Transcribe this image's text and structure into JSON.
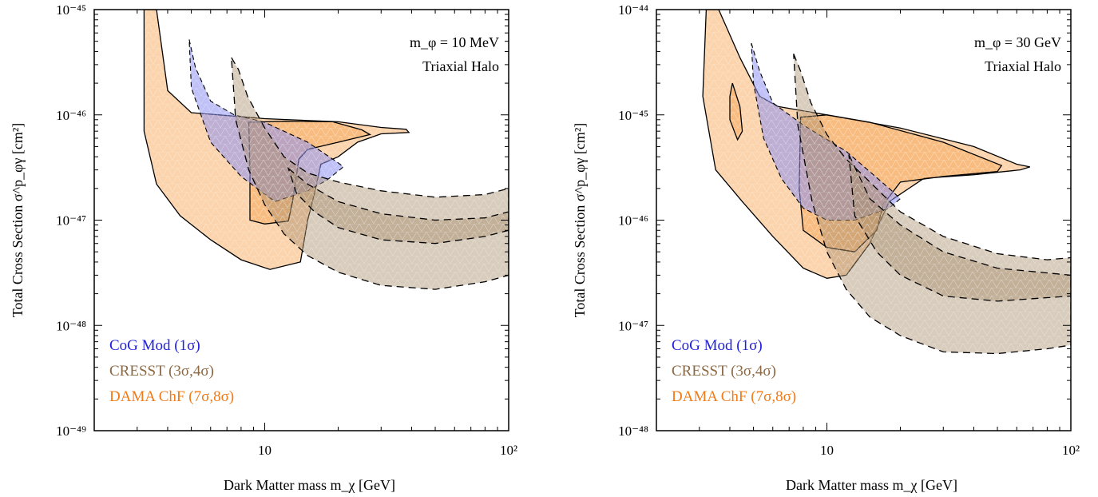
{
  "chart_data": [
    {
      "type": "area",
      "panel": "left",
      "annotation_lines": [
        "m_φ = 10 MeV",
        "Triaxial Halo"
      ],
      "xlabel": "Dark Matter mass   m_χ  [GeV]",
      "ylabel": "Total Cross Section  σ^p_φγ [cm²]",
      "xscale": "log",
      "yscale": "log",
      "xlim": [
        2,
        100
      ],
      "ylim": [
        1e-49,
        1e-45
      ],
      "xticklabels": [
        "10",
        "10²"
      ],
      "yticklabels": [
        "10⁻⁴⁵",
        "10⁻⁴⁶",
        "10⁻⁴⁷",
        "10⁻⁴⁸",
        "10⁻⁴⁹"
      ],
      "legend": [
        {
          "label": "CoG Mod  (1σ)",
          "color": "#2222dd"
        },
        {
          "label": "CRESST  (3σ,4σ)",
          "color": "#8b6a45"
        },
        {
          "label": "DAMA ChF (7σ,8σ)",
          "color": "#f07b17"
        }
      ],
      "legend_position": "bottom-left",
      "series": [
        {
          "name": "DAMA ChF (7σ,8σ)",
          "contour": "8σ",
          "points": [
            [
              3.2,
              1e-45
            ],
            [
              3.6,
              1e-45
            ],
            [
              4.0,
              1.7e-46
            ],
            [
              5.0,
              1.05e-46
            ],
            [
              6.5,
              1e-46
            ],
            [
              10,
              9.2e-47
            ],
            [
              20,
              8.6e-47
            ],
            [
              30,
              7.6e-47
            ],
            [
              38,
              7.3e-47
            ],
            [
              39,
              6.8e-47
            ],
            [
              30,
              6.6e-47
            ],
            [
              24,
              5.5e-47
            ],
            [
              20,
              4e-47
            ],
            [
              17,
              3.4e-47
            ],
            [
              16,
              1.8e-47
            ],
            [
              15,
              1e-47
            ],
            [
              14,
              4e-48
            ],
            [
              10.5,
              3.4e-48
            ],
            [
              8,
              4.2e-48
            ],
            [
              6,
              6.5e-48
            ],
            [
              4.5,
              1.1e-47
            ],
            [
              3.6,
              2.2e-47
            ],
            [
              3.2,
              7e-47
            ],
            [
              3.2,
              1e-45
            ]
          ]
        },
        {
          "name": "DAMA ChF (7σ,8σ)",
          "contour": "7σ",
          "points": [
            [
              8.6,
              8.5e-47
            ],
            [
              12,
              8.7e-47
            ],
            [
              19,
              8.6e-47
            ],
            [
              25,
              7.2e-47
            ],
            [
              27,
              6.5e-47
            ],
            [
              20,
              5.5e-47
            ],
            [
              15,
              4.7e-47
            ],
            [
              13.8,
              3.8e-47
            ],
            [
              13,
              1.5e-47
            ],
            [
              12.5,
              9.8e-48
            ],
            [
              10,
              9.2e-48
            ],
            [
              8.7,
              1e-47
            ],
            [
              8.7,
              3e-47
            ],
            [
              8.6,
              8.5e-47
            ]
          ]
        },
        {
          "name": "CoG Mod (1σ)",
          "contour": "1σ",
          "points": [
            [
              4.9,
              5.2e-46
            ],
            [
              5.2,
              2.8e-46
            ],
            [
              6.0,
              1.35e-46
            ],
            [
              7.5,
              1e-46
            ],
            [
              10,
              8.5e-47
            ],
            [
              15,
              5.5e-47
            ],
            [
              20,
              3.5e-47
            ],
            [
              21,
              3.2e-47
            ],
            [
              18,
              2.4e-47
            ],
            [
              15,
              1.9e-47
            ],
            [
              11,
              1.5e-47
            ],
            [
              8,
              2.6e-47
            ],
            [
              6,
              5.5e-47
            ],
            [
              5,
              1.8e-46
            ],
            [
              4.9,
              5.2e-46
            ]
          ]
        },
        {
          "name": "CRESST (3σ,4σ)",
          "contour": "4σ",
          "points": [
            [
              7.3,
              3.5e-46
            ],
            [
              7.8,
              2.7e-46
            ],
            [
              8.5,
              1.5e-46
            ],
            [
              10,
              7.5e-47
            ],
            [
              12,
              4e-47
            ],
            [
              15,
              2.8e-47
            ],
            [
              20,
              2.3e-47
            ],
            [
              30,
              1.9e-47
            ],
            [
              50,
              1.65e-47
            ],
            [
              80,
              1.75e-47
            ],
            [
              100,
              2e-47
            ],
            [
              100,
              3e-48
            ],
            [
              80,
              2.6e-48
            ],
            [
              50,
              2.2e-48
            ],
            [
              30,
              2.4e-48
            ],
            [
              20,
              3.2e-48
            ],
            [
              15,
              4.6e-48
            ],
            [
              12,
              7.4e-48
            ],
            [
              10,
              1.4e-47
            ],
            [
              8.6,
              3e-47
            ],
            [
              7.6,
              9e-47
            ],
            [
              7.3,
              3.5e-46
            ]
          ]
        },
        {
          "name": "CRESST (3σ,4σ)",
          "contour": "3σ",
          "points": [
            [
              12.5,
              3.1e-47
            ],
            [
              15,
              2.2e-47
            ],
            [
              20,
              1.5e-47
            ],
            [
              30,
              1.15e-47
            ],
            [
              50,
              1e-47
            ],
            [
              80,
              1.05e-47
            ],
            [
              100,
              1.2e-47
            ],
            [
              100,
              8e-48
            ],
            [
              80,
              7e-48
            ],
            [
              50,
              6e-48
            ],
            [
              30,
              6.5e-48
            ],
            [
              20,
              8.5e-48
            ],
            [
              16,
              1.2e-47
            ],
            [
              13.5,
              1.8e-47
            ],
            [
              12.5,
              3.1e-47
            ]
          ]
        }
      ]
    },
    {
      "type": "area",
      "panel": "right",
      "annotation_lines": [
        "m_φ = 30 GeV",
        "Triaxial Halo"
      ],
      "xlabel": "Dark Matter mass   m_χ  [GeV]",
      "ylabel": "Total Cross Section  σ^p_φγ [cm²]",
      "xscale": "log",
      "yscale": "log",
      "xlim": [
        2,
        100
      ],
      "ylim": [
        1e-48,
        1e-44
      ],
      "xticklabels": [
        "10",
        "10²"
      ],
      "yticklabels": [
        "10⁻⁴⁴",
        "10⁻⁴⁵",
        "10⁻⁴⁶",
        "10⁻⁴⁷",
        "10⁻⁴⁸"
      ],
      "legend": [
        {
          "label": "CoG Mod  (1σ)",
          "color": "#2222dd"
        },
        {
          "label": "CRESST  (3σ,4σ)",
          "color": "#8b6a45"
        },
        {
          "label": "DAMA ChF (7σ,8σ)",
          "color": "#f07b17"
        }
      ],
      "legend_position": "bottom-left",
      "series": [
        {
          "name": "DAMA ChF (7σ,8σ)",
          "contour": "8σ",
          "points": [
            [
              3.2,
              1e-44
            ],
            [
              3.6,
              1e-44
            ],
            [
              4.4,
              3.5e-45
            ],
            [
              5.3,
              1.5e-45
            ],
            [
              6.3,
              1.2e-45
            ],
            [
              10,
              1e-45
            ],
            [
              20,
              7.5e-46
            ],
            [
              40,
              5e-46
            ],
            [
              60,
              3.4e-46
            ],
            [
              68,
              3.2e-46
            ],
            [
              62,
              3e-46
            ],
            [
              40,
              2.7e-46
            ],
            [
              25,
              2.5e-46
            ],
            [
              18,
              1.5e-46
            ],
            [
              15,
              6e-47
            ],
            [
              12,
              3e-47
            ],
            [
              10,
              2.8e-47
            ],
            [
              8,
              3.5e-47
            ],
            [
              6,
              7e-47
            ],
            [
              4.5,
              1.5e-46
            ],
            [
              3.5,
              3e-46
            ],
            [
              3.1,
              1.5e-45
            ],
            [
              3.2,
              1e-44
            ]
          ]
        },
        {
          "name": "DAMA ChF (7σ,8σ)",
          "contour": "7σ",
          "points": [
            [
              7.8,
              9.5e-46
            ],
            [
              10,
              1e-45
            ],
            [
              15,
              8.5e-46
            ],
            [
              30,
              5.5e-46
            ],
            [
              52,
              3.3e-46
            ],
            [
              50,
              2.9e-46
            ],
            [
              30,
              2.6e-46
            ],
            [
              20,
              2.3e-46
            ],
            [
              17,
              1.4e-46
            ],
            [
              16,
              8e-47
            ],
            [
              13,
              5e-47
            ],
            [
              10,
              5.5e-47
            ],
            [
              8,
              8e-47
            ],
            [
              7.7,
              2e-46
            ],
            [
              7.8,
              9.5e-46
            ]
          ]
        },
        {
          "name": "DAMA ChF (7σ,8σ)",
          "contour": "7σ-island",
          "points": [
            [
              4.1,
              2e-45
            ],
            [
              4.4,
              1.2e-45
            ],
            [
              4.5,
              7e-46
            ],
            [
              4.3,
              5.8e-46
            ],
            [
              4.0,
              9e-46
            ],
            [
              4.0,
              1.5e-45
            ],
            [
              4.1,
              2e-45
            ]
          ]
        },
        {
          "name": "CoG Mod (1σ)",
          "contour": "1σ",
          "points": [
            [
              4.9,
              4.8e-45
            ],
            [
              5.3,
              2.6e-45
            ],
            [
              6.0,
              1.3e-45
            ],
            [
              8,
              8e-46
            ],
            [
              12,
              4.5e-46
            ],
            [
              18,
              2e-46
            ],
            [
              20,
              1.6e-46
            ],
            [
              18,
              1.3e-46
            ],
            [
              13,
              1e-46
            ],
            [
              10,
              1e-46
            ],
            [
              8,
              1.3e-46
            ],
            [
              6.5,
              2.5e-46
            ],
            [
              5.5,
              6e-46
            ],
            [
              5,
              2e-45
            ],
            [
              4.9,
              4.8e-45
            ]
          ]
        },
        {
          "name": "CRESST (3σ,4σ)",
          "contour": "4σ",
          "points": [
            [
              7.3,
              3.8e-45
            ],
            [
              7.8,
              2.6e-45
            ],
            [
              8.6,
              1.3e-45
            ],
            [
              10,
              6.5e-46
            ],
            [
              12,
              3.8e-46
            ],
            [
              15,
              2.3e-46
            ],
            [
              20,
              1.2e-46
            ],
            [
              30,
              7e-47
            ],
            [
              50,
              4.8e-47
            ],
            [
              80,
              4.2e-47
            ],
            [
              100,
              4.4e-47
            ],
            [
              100,
              6.5e-48
            ],
            [
              80,
              6e-48
            ],
            [
              50,
              5.4e-48
            ],
            [
              30,
              5.6e-48
            ],
            [
              20,
              8e-48
            ],
            [
              15,
              1.2e-47
            ],
            [
              12,
              2.2e-47
            ],
            [
              10,
              5e-47
            ],
            [
              8.7,
              1.5e-46
            ],
            [
              7.6,
              8e-46
            ],
            [
              7.3,
              3.8e-45
            ]
          ]
        },
        {
          "name": "CRESST (3σ,4σ)",
          "contour": "3σ",
          "points": [
            [
              12.3,
              4.2e-46
            ],
            [
              15,
              1.6e-46
            ],
            [
              20,
              9e-47
            ],
            [
              30,
              5e-47
            ],
            [
              50,
              3.5e-47
            ],
            [
              100,
              3e-47
            ],
            [
              100,
              1.9e-47
            ],
            [
              50,
              1.7e-47
            ],
            [
              30,
              1.9e-47
            ],
            [
              20,
              3e-47
            ],
            [
              16,
              5e-47
            ],
            [
              13,
              1.1e-46
            ],
            [
              12.3,
              4.2e-46
            ]
          ]
        }
      ]
    }
  ]
}
